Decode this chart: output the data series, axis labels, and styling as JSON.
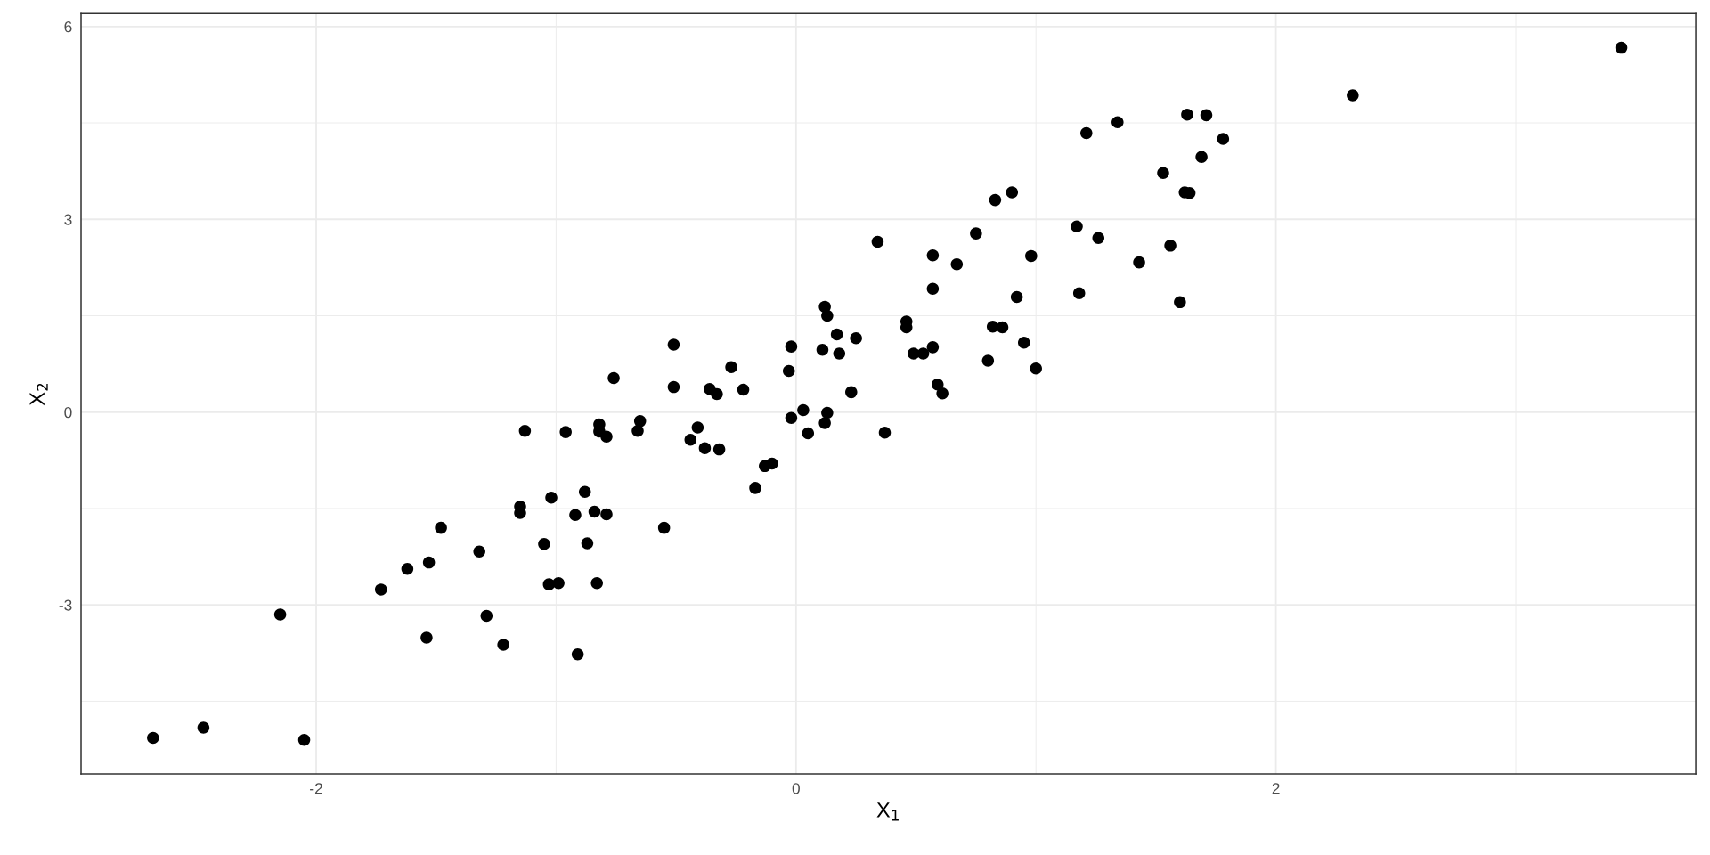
{
  "chart_data": {
    "type": "scatter",
    "xlabel": "X$_{1}$",
    "ylabel": "X$_{2}$",
    "x": [
      -2.68,
      -2.47,
      -2.15,
      -2.05,
      -1.73,
      -1.62,
      -1.53,
      -1.54,
      -1.48,
      -1.32,
      -1.29,
      -1.22,
      -1.15,
      -1.15,
      -1.13,
      -1.05,
      -1.03,
      -1.02,
      -0.99,
      -0.96,
      -0.92,
      -0.91,
      -0.88,
      -0.87,
      -0.84,
      -0.83,
      -0.82,
      -0.82,
      -0.79,
      -0.79,
      -0.76,
      -0.66,
      -0.65,
      -0.55,
      -0.51,
      -0.51,
      -0.44,
      -0.41,
      -0.38,
      -0.36,
      -0.33,
      -0.32,
      -0.27,
      -0.22,
      -0.17,
      -0.13,
      -0.1,
      -0.02,
      -0.03,
      -0.02,
      0.03,
      0.05,
      0.11,
      0.12,
      0.12,
      0.13,
      0.13,
      0.17,
      0.18,
      0.23,
      0.25,
      0.34,
      0.37,
      0.46,
      0.46,
      0.49,
      0.53,
      0.57,
      0.57,
      0.57,
      0.59,
      0.61,
      0.67,
      0.75,
      0.8,
      0.82,
      0.83,
      0.86,
      0.9,
      0.92,
      0.95,
      0.98,
      1.0,
      1.17,
      1.18,
      1.21,
      1.26,
      1.34,
      1.43,
      1.53,
      1.56,
      1.6,
      1.62,
      1.63,
      1.64,
      1.69,
      1.71,
      1.78,
      2.32,
      3.44
    ],
    "series": [
      {
        "color": "#000000",
        "values": [
          -5.07,
          -4.91,
          -3.15,
          -5.1,
          -2.76,
          -2.44,
          -2.34,
          -3.51,
          -1.8,
          -2.17,
          -3.17,
          -3.62,
          -1.47,
          -1.57,
          -0.29,
          -2.05,
          -2.68,
          -1.33,
          -2.66,
          -0.31,
          -1.6,
          -3.77,
          -1.24,
          -2.04,
          -1.55,
          -2.66,
          -0.19,
          -0.3,
          -0.38,
          -1.59,
          0.53,
          -0.29,
          -0.14,
          -1.8,
          1.05,
          0.39,
          -0.43,
          -0.24,
          -0.56,
          0.36,
          0.28,
          -0.58,
          0.7,
          0.35,
          -1.18,
          -0.84,
          -0.8,
          1.02,
          0.64,
          -0.09,
          0.03,
          -0.33,
          0.97,
          1.64,
          -0.17,
          1.5,
          -0.01,
          1.21,
          0.91,
          0.31,
          1.15,
          2.65,
          -0.32,
          1.41,
          1.32,
          0.91,
          0.91,
          2.44,
          1.92,
          1.01,
          0.43,
          0.29,
          2.3,
          2.78,
          0.8,
          1.33,
          3.3,
          1.32,
          3.42,
          1.79,
          1.08,
          2.43,
          0.68,
          2.89,
          1.85,
          4.34,
          2.71,
          4.51,
          2.33,
          3.72,
          2.59,
          1.71,
          3.42,
          4.63,
          3.41,
          3.97,
          4.62,
          4.25,
          4.93,
          5.67
        ]
      }
    ],
    "xlim": [
      -2.98,
      3.75
    ],
    "ylim": [
      -5.63,
      6.2
    ],
    "xticks": [
      -2,
      0,
      2
    ],
    "yticks": [
      -3,
      0,
      3,
      6
    ],
    "grid": true,
    "marker": "circle"
  }
}
